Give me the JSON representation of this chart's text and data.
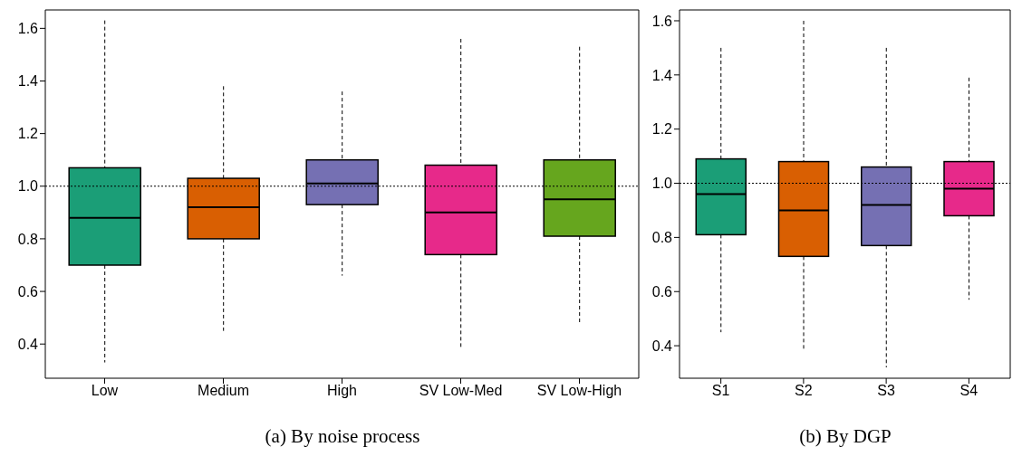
{
  "chart_data": [
    {
      "type": "box",
      "title": "(a) By noise process",
      "categories": [
        "Low",
        "Medium",
        "High",
        "SV Low-Med",
        "SV Low-High"
      ],
      "colors": [
        "#1b9e77",
        "#d95f02",
        "#7570b3",
        "#e7298a",
        "#66a61e"
      ],
      "boxes": [
        {
          "low": 0.33,
          "q1": 0.7,
          "median": 0.88,
          "q3": 1.07,
          "high": 1.63
        },
        {
          "low": 0.45,
          "q1": 0.8,
          "median": 0.92,
          "q3": 1.03,
          "high": 1.38
        },
        {
          "low": 0.66,
          "q1": 0.93,
          "median": 1.01,
          "q3": 1.1,
          "high": 1.36
        },
        {
          "low": 0.38,
          "q1": 0.74,
          "median": 0.9,
          "q3": 1.08,
          "high": 1.56
        },
        {
          "low": 0.48,
          "q1": 0.81,
          "median": 0.95,
          "q3": 1.1,
          "high": 1.53
        }
      ],
      "ylim": [
        0.27,
        1.67
      ],
      "yticks": [
        {
          "value": 0.4,
          "label": "0.4"
        },
        {
          "value": 0.6,
          "label": "0.6"
        },
        {
          "value": 0.8,
          "label": "0.8"
        },
        {
          "value": 1,
          "label": "1.0"
        },
        {
          "value": 1.2,
          "label": "1.2"
        },
        {
          "value": 1.4,
          "label": "1.4"
        },
        {
          "value": 1.6,
          "label": "1.6"
        }
      ],
      "ref_lines": [
        {
          "axis": "y",
          "value": 1,
          "color": "#000000",
          "line_style": "dotted"
        }
      ],
      "grid": false,
      "legend": false
    },
    {
      "type": "box",
      "title": "(b) By DGP",
      "categories": [
        "S1",
        "S2",
        "S3",
        "S4"
      ],
      "colors": [
        "#1b9e77",
        "#d95f02",
        "#7570b3",
        "#e7298a"
      ],
      "boxes": [
        {
          "low": 0.45,
          "q1": 0.81,
          "median": 0.96,
          "q3": 1.09,
          "high": 1.5
        },
        {
          "low": 0.38,
          "q1": 0.73,
          "median": 0.9,
          "q3": 1.08,
          "high": 1.6
        },
        {
          "low": 0.32,
          "q1": 0.77,
          "median": 0.92,
          "q3": 1.06,
          "high": 1.5
        },
        {
          "low": 0.57,
          "q1": 0.88,
          "median": 0.98,
          "q3": 1.08,
          "high": 1.39
        }
      ],
      "ylim": [
        0.28,
        1.64
      ],
      "yticks": [
        {
          "value": 0.4,
          "label": "0.4"
        },
        {
          "value": 0.6,
          "label": "0.6"
        },
        {
          "value": 0.8,
          "label": "0.8"
        },
        {
          "value": 1,
          "label": "1.0"
        },
        {
          "value": 1.2,
          "label": "1.2"
        },
        {
          "value": 1.4,
          "label": "1.4"
        },
        {
          "value": 1.6,
          "label": "1.6"
        }
      ],
      "ref_lines": [
        {
          "axis": "y",
          "value": 1,
          "color": "#000000",
          "line_style": "dotted"
        }
      ],
      "grid": false,
      "legend": false
    }
  ]
}
